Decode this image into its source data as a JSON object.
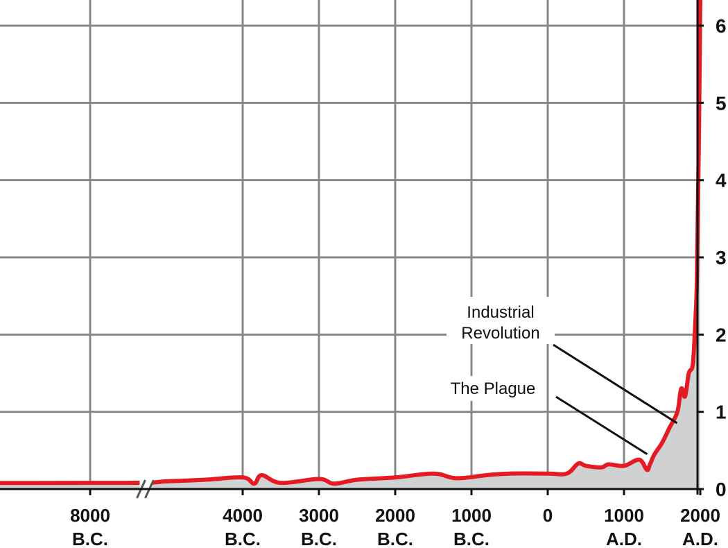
{
  "chart_data": {
    "type": "area",
    "title": "",
    "xlabel": "",
    "ylabel": "",
    "xlim": [
      -10000,
      2000
    ],
    "ylim": [
      0,
      6.3
    ],
    "axis_break_on_x": true,
    "grid": true,
    "legend": "none",
    "colors": {
      "line": "#e41b23",
      "fill": "#d0d1d3",
      "grid": "#888888",
      "axis": "#111111",
      "background": "#ffffff"
    },
    "x_ticks": [
      {
        "value": -8000,
        "line1": "8000",
        "line2": "B.C."
      },
      {
        "value": -4000,
        "line1": "4000",
        "line2": "B.C."
      },
      {
        "value": -3000,
        "line1": "3000",
        "line2": "B.C."
      },
      {
        "value": -2000,
        "line1": "2000",
        "line2": "B.C."
      },
      {
        "value": -1000,
        "line1": "1000",
        "line2": "B.C."
      },
      {
        "value": 0,
        "line1": "0",
        "line2": ""
      },
      {
        "value": 1000,
        "line1": "1000",
        "line2": "A.D."
      },
      {
        "value": 2000,
        "line1": "2000",
        "line2": "A.D."
      }
    ],
    "y_ticks": [
      0,
      1,
      2,
      3,
      4,
      5,
      6
    ],
    "series": [
      {
        "x": [
          -10000,
          -7000,
          -6000,
          -5000,
          -4000,
          -3850,
          -3750,
          -3500,
          -3000,
          -2800,
          -2500,
          -2000,
          -1500,
          -1200,
          -800,
          -500,
          0,
          250,
          400,
          500,
          700,
          800,
          1000,
          1200,
          1300,
          1340,
          1400,
          1500,
          1600,
          1700,
          1750,
          1800,
          1850,
          1900,
          1927,
          1950,
          1960,
          1970,
          1980,
          1990,
          2000
        ],
        "y": [
          0.08,
          0.08,
          0.1,
          0.12,
          0.15,
          0.07,
          0.18,
          0.08,
          0.13,
          0.07,
          0.12,
          0.15,
          0.2,
          0.14,
          0.18,
          0.2,
          0.2,
          0.2,
          0.33,
          0.3,
          0.28,
          0.32,
          0.3,
          0.38,
          0.25,
          0.32,
          0.45,
          0.6,
          0.8,
          1.0,
          1.3,
          1.2,
          1.5,
          1.6,
          2.0,
          2.5,
          3.0,
          3.7,
          4.4,
          5.3,
          6.3
        ]
      }
    ],
    "annotations": [
      {
        "lines": [
          "Industrial",
          "Revolution"
        ],
        "x": 1750,
        "y": 0.8
      },
      {
        "lines": [
          "The Plague"
        ],
        "x": 1340,
        "y": 0.38
      }
    ]
  }
}
